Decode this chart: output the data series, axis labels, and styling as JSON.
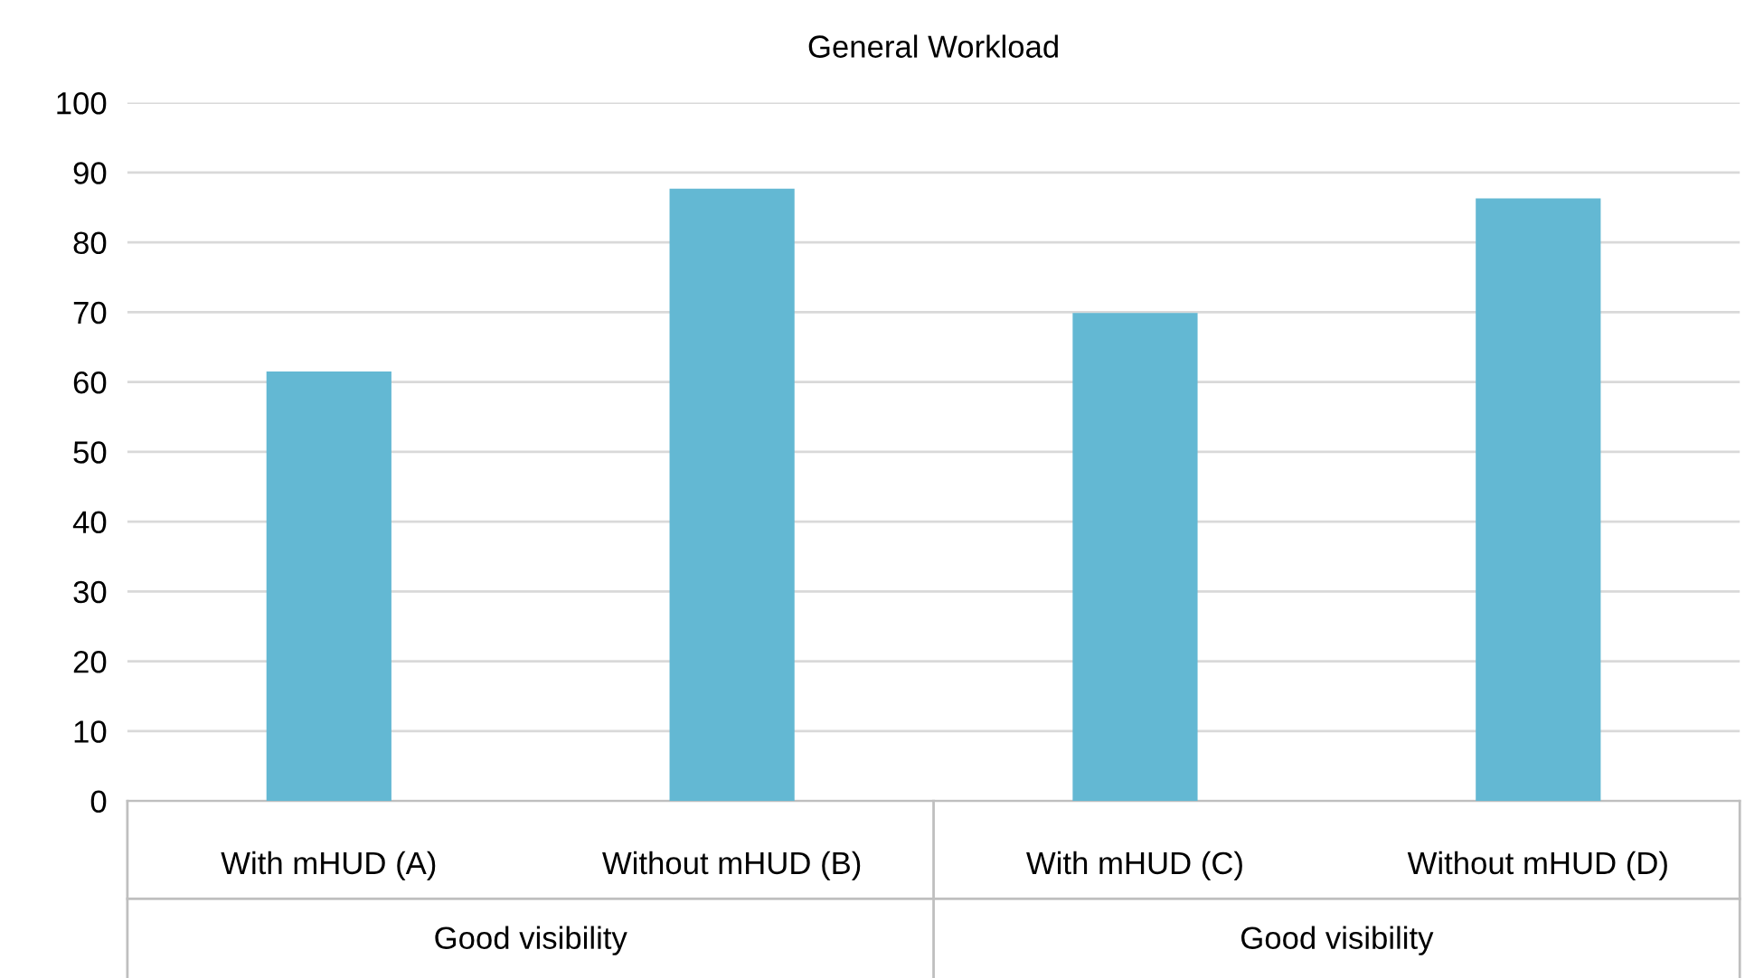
{
  "chart_data": {
    "type": "bar",
    "title": "General Workload",
    "categories": [
      "With mHUD (A)",
      "Without mHUD (B)",
      "With mHUD (C)",
      "Without mHUD (D)"
    ],
    "values": [
      61.5,
      87.7,
      69.9,
      86.3
    ],
    "color": "#63b8d3",
    "ylim": [
      0,
      100
    ],
    "yticks": [
      0,
      10,
      20,
      30,
      40,
      50,
      60,
      70,
      80,
      90,
      100
    ],
    "grid": "y",
    "annotations": [
      "Good visibility",
      "Good visibility"
    ]
  }
}
